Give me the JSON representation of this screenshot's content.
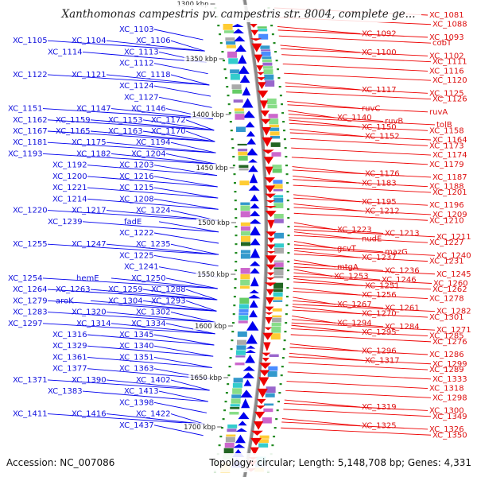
{
  "title": "Xanthomonas campestris pv. campestris str. 8004, complete ge...",
  "accession": "Accession: NC_007086",
  "topology": "Topology: circular; Length: 5,148,708 bp; Genes: 4,331",
  "colors": {
    "forward": "#0000ee",
    "reverse": "#ee0000",
    "backbone": "#888888",
    "gc_dots": "#228b22"
  },
  "ticks": [
    "1300 kbp",
    "1350 kbp",
    "1400 kbp",
    "1450 kbp",
    "1500 kbp",
    "1550 kbp",
    "1600 kbp",
    "1650 kbp",
    "1700 kbp"
  ],
  "left_labels": [
    "XC_1103",
    "XC_1105",
    "XC_1104",
    "XC_1106",
    "XC_1114",
    "XC_1113",
    "XC_1112",
    "XC_1122",
    "XC_1121",
    "XC_1118",
    "XC_1124",
    "XC_1127",
    "XC_1151",
    "XC_1147",
    "XC_1146",
    "XC_1162",
    "XC_1159",
    "XC_1153",
    "XC_1172",
    "XC_1167",
    "XC_1165",
    "XC_1163",
    "XC_1170",
    "XC_1181",
    "XC_1175",
    "XC_1194",
    "XC_1193",
    "XC_1182",
    "XC_1204",
    "XC_1192",
    "XC_1203",
    "XC_1200",
    "XC_1216",
    "XC_1221",
    "XC_1215",
    "XC_1214",
    "XC_1208",
    "XC_1220",
    "XC_1217",
    "XC_1224",
    "XC_1239",
    "fadE",
    "XC_1222",
    "XC_1255",
    "XC_1247",
    "XC_1235",
    "XC_1225",
    "XC_1241",
    "XC_1254",
    "hemE",
    "XC_1250",
    "XC_1264",
    "XC_1263",
    "XC_1259",
    "XC_1288",
    "XC_1279",
    "aroK",
    "XC_1304",
    "XC_1293",
    "XC_1283",
    "XC_1320",
    "XC_1302",
    "XC_1297",
    "XC_1314",
    "XC_1334",
    "XC_1316",
    "XC_1345",
    "XC_1329",
    "XC_1340",
    "XC_1361",
    "XC_1351",
    "XC_1377",
    "XC_1363",
    "XC_1371",
    "XC_1390",
    "XC_1402",
    "XC_1383",
    "XC_1413",
    "XC_1398",
    "XC_1411",
    "XC_1416",
    "XC_1422",
    "XC_1437"
  ],
  "right_labels": [
    "XC_1081",
    "XC_1088",
    "XC_1092",
    "XC_1093",
    "cobT",
    "XC_1100",
    "XC_1102",
    "XC_1111",
    "XC_1116",
    "XC_1120",
    "XC_1117",
    "XC_1125",
    "XC_1126",
    "ruvC",
    "ruvA",
    "XC_1140",
    "ruvB",
    "tolB",
    "XC_1150",
    "XC_1158",
    "XC_1152",
    "XC_1164",
    "XC_1173",
    "XC_1174",
    "XC_1179",
    "XC_1176",
    "XC_1187",
    "XC_1183",
    "XC_1188",
    "XC_1201",
    "XC_1195",
    "XC_1196",
    "XC_1212",
    "XC_1209",
    "XC_1210",
    "XC_1223",
    "XC_1213",
    "XC_1211",
    "nudE",
    "XC_1227",
    "gcvT",
    "mazG",
    "XC_1240",
    "XC_1237",
    "XC_1231",
    "mtgA",
    "XC_1236",
    "XC_1245",
    "XC_1253",
    "XC_1246",
    "XC_1260",
    "XC_1251",
    "XC_1262",
    "XC_1256",
    "XC_1278",
    "XC_1267",
    "XC_1261",
    "XC_1282",
    "XC_1270",
    "XC_1301",
    "XC_1294",
    "XC_1284",
    "XC_1271",
    "XC_1295",
    "XC_1285",
    "XC_1276",
    "XC_1296",
    "XC_1286",
    "XC_1317",
    "XC_1299",
    "XC_1289",
    "XC_1333",
    "XC_1318",
    "XC_1298",
    "XC_1319",
    "XC_1300",
    "XC_1349",
    "XC_1325",
    "XC_1326",
    "XC_1350"
  ]
}
